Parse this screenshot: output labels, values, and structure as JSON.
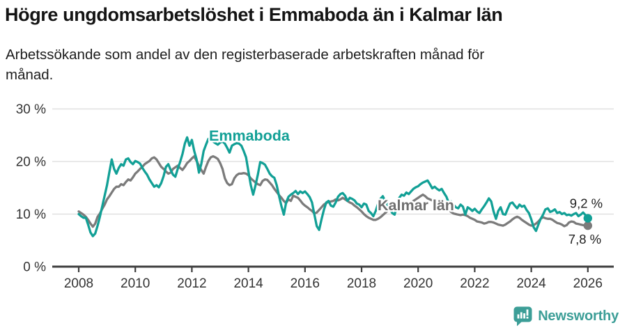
{
  "header": {
    "title": "Högre ungdomsarbetslöshet i Emmaboda än i Kalmar län",
    "subtitle_lines": [
      "Arbetssökande som andel av den registerbaserade arbetskraften månad för",
      "månad."
    ]
  },
  "footer": {
    "brand": "Newsworthy",
    "brand_color": "#3c9e97"
  },
  "chart_data": {
    "type": "line",
    "title": "Högre ungdomsarbetslöshet i Emmaboda än i Kalmar län",
    "xlabel": "",
    "ylabel": "Arbetssökande som andel av den registerbaserade arbetskraften",
    "x_unit": "year-month",
    "x_start_year": 2008,
    "points_per_year": 12,
    "xlim": [
      2007.1,
      2026.9
    ],
    "ylim": [
      0,
      30
    ],
    "grid": true,
    "x_ticks": [
      "2008",
      "2010",
      "2012",
      "2014",
      "2016",
      "2018",
      "2020",
      "2022",
      "2024",
      "2026"
    ],
    "x_tick_years": [
      2008,
      2010,
      2012,
      2014,
      2016,
      2018,
      2020,
      2022,
      2024,
      2026
    ],
    "y_ticks": [
      0,
      10,
      20,
      30
    ],
    "y_tick_labels": [
      "0 %",
      "10 %",
      "20 %",
      "30 %"
    ],
    "axis_color": "#3d3d3d",
    "grid_color": "#dcdcdc",
    "tick_label_color": "#333333",
    "series": [
      {
        "name": "Kalmar län",
        "color": "#7b7b7b",
        "label_color": "#6f6f6f",
        "end_label": "7,8 %",
        "end_value": 7.8,
        "values": [
          10.5,
          10.2,
          9.9,
          9.5,
          8.9,
          8.2,
          7.6,
          8.2,
          9.5,
          10.1,
          11.0,
          11.8,
          12.8,
          13.4,
          14.1,
          14.8,
          15.2,
          15.2,
          15.7,
          15.5,
          16.1,
          16.6,
          16.4,
          17.0,
          17.7,
          18.1,
          18.6,
          19.0,
          19.5,
          19.8,
          20.1,
          20.6,
          20.8,
          20.4,
          19.7,
          19.0,
          18.6,
          18.1,
          17.7,
          17.9,
          18.6,
          18.9,
          19.2,
          18.8,
          18.4,
          19.0,
          19.7,
          20.1,
          20.6,
          21.0,
          20.1,
          19.2,
          18.4,
          17.7,
          19.0,
          20.1,
          20.8,
          21.0,
          20.8,
          20.5,
          19.7,
          18.6,
          16.8,
          15.9,
          15.5,
          15.7,
          16.8,
          17.4,
          17.7,
          17.7,
          17.8,
          17.7,
          17.4,
          16.8,
          16.4,
          16.0,
          15.7,
          15.5,
          16.3,
          16.6,
          16.5,
          16.0,
          15.5,
          14.8,
          14.2,
          13.6,
          13.1,
          12.5,
          12.1,
          12.8,
          12.5,
          13.5,
          13.3,
          13.1,
          12.6,
          12.0,
          11.6,
          11.3,
          10.9,
          10.6,
          10.1,
          10.3,
          10.8,
          11.3,
          11.8,
          12.1,
          12.3,
          12.4,
          12.5,
          12.8,
          12.6,
          12.8,
          13.1,
          12.8,
          12.5,
          12.2,
          12.0,
          11.6,
          11.3,
          10.9,
          10.5,
          10.0,
          9.6,
          9.3,
          9.1,
          8.9,
          8.9,
          9.1,
          9.4,
          9.8,
          10.2,
          10.6,
          11.0,
          11.3,
          11.5,
          11.6,
          11.8,
          11.8,
          11.6,
          11.8,
          12.0,
          12.2,
          12.5,
          12.8,
          13.1,
          13.4,
          13.7,
          13.4,
          13.0,
          12.8,
          12.6,
          12.8,
          12.5,
          12.3,
          12.0,
          11.8,
          11.3,
          10.9,
          10.4,
          10.1,
          10.0,
          9.9,
          9.8,
          9.9,
          9.8,
          9.6,
          9.3,
          9.1,
          8.9,
          8.6,
          8.5,
          8.4,
          8.2,
          8.3,
          8.5,
          8.5,
          8.4,
          8.2,
          8.0,
          7.9,
          7.8,
          8.0,
          8.3,
          8.6,
          9.0,
          9.3,
          9.5,
          9.3,
          8.9,
          8.6,
          8.3,
          8.0,
          7.8,
          7.9,
          8.2,
          8.6,
          9.1,
          9.4,
          9.2,
          9.1,
          9.1,
          8.9,
          8.6,
          8.3,
          8.2,
          8.0,
          7.7,
          7.9,
          8.4,
          8.6,
          8.5,
          8.2,
          8.1,
          8.0,
          7.9,
          7.8,
          7.8
        ]
      },
      {
        "name": "Emmaboda",
        "color": "#12a096",
        "label_color": "#12a096",
        "end_label": "9,2 %",
        "end_value": 9.2,
        "values": [
          10.0,
          9.6,
          9.3,
          9.3,
          8.0,
          6.5,
          5.8,
          6.3,
          7.8,
          9.5,
          11.5,
          13.5,
          15.5,
          18.0,
          20.4,
          18.6,
          17.7,
          18.8,
          19.5,
          19.2,
          20.4,
          20.6,
          19.9,
          19.5,
          20.1,
          19.9,
          19.6,
          18.8,
          18.1,
          17.5,
          16.6,
          15.9,
          15.2,
          15.5,
          15.1,
          15.9,
          17.2,
          19.0,
          19.5,
          18.4,
          17.5,
          17.1,
          18.6,
          19.9,
          21.4,
          23.4,
          24.6,
          23.0,
          24.1,
          22.0,
          20.4,
          17.9,
          19.5,
          22.0,
          23.2,
          24.3,
          24.0,
          23.8,
          23.5,
          23.2,
          23.6,
          23.8,
          23.4,
          22.6,
          21.7,
          23.0,
          23.3,
          23.5,
          23.4,
          23.0,
          22.0,
          20.8,
          18.1,
          15.5,
          13.7,
          15.5,
          17.5,
          19.9,
          19.7,
          19.4,
          18.6,
          17.7,
          17.2,
          16.9,
          15.5,
          13.4,
          11.5,
          9.9,
          12.2,
          13.3,
          13.7,
          14.0,
          14.4,
          13.8,
          14.3,
          14.0,
          14.3,
          13.8,
          13.2,
          12.2,
          9.9,
          7.7,
          7.0,
          9.0,
          10.8,
          12.2,
          12.5,
          11.6,
          11.4,
          12.2,
          13.3,
          13.8,
          14.0,
          13.5,
          12.5,
          13.1,
          12.9,
          12.6,
          12.0,
          11.8,
          11.3,
          12.0,
          11.8,
          10.6,
          10.2,
          9.6,
          10.6,
          12.0,
          12.9,
          13.4,
          12.5,
          11.8,
          11.0,
          10.2,
          9.9,
          11.5,
          13.1,
          13.7,
          13.5,
          14.1,
          13.8,
          14.3,
          14.8,
          15.1,
          15.3,
          15.7,
          16.0,
          16.2,
          16.4,
          15.7,
          14.9,
          15.2,
          14.8,
          14.5,
          14.8,
          14.0,
          13.3,
          12.1,
          12.4,
          11.8,
          11.3,
          11.1,
          11.8,
          11.4,
          9.9,
          11.3,
          11.0,
          10.6,
          11.0,
          10.5,
          10.2,
          10.9,
          11.5,
          12.2,
          13.0,
          12.4,
          10.5,
          9.1,
          10.6,
          11.3,
          10.0,
          9.9,
          11.0,
          12.0,
          12.2,
          11.6,
          11.1,
          11.8,
          11.4,
          11.6,
          10.8,
          10.2,
          9.0,
          7.5,
          6.8,
          8.0,
          9.1,
          9.9,
          10.9,
          11.1,
          10.4,
          10.6,
          10.9,
          10.2,
          10.4,
          10.0,
          10.2,
          9.8,
          9.9,
          9.7,
          10.0,
          10.2,
          9.6,
          9.9,
          10.3,
          9.8,
          9.2
        ]
      }
    ]
  }
}
